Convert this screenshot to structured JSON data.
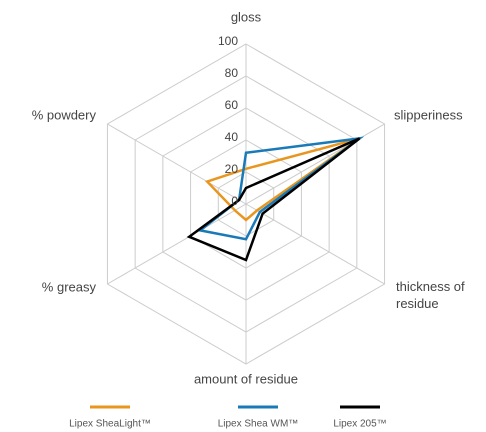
{
  "chart_data": {
    "type": "radar",
    "categories": [
      "gloss",
      "slipperiness",
      "thickness of residue",
      "amount of residue",
      "% greasy",
      "% powdery"
    ],
    "ylim": [
      0,
      100
    ],
    "yticks": [
      0,
      20,
      40,
      60,
      80,
      100
    ],
    "grid": true,
    "series": [
      {
        "name": "Lipex SheaLight™",
        "color": "#e8961e",
        "values": [
          22,
          82,
          8,
          10,
          8,
          28
        ]
      },
      {
        "name": "Lipex Shea WM™",
        "color": "#1a7ab8",
        "values": [
          32,
          82,
          10,
          22,
          33,
          5
        ]
      },
      {
        "name": "Lipex 205™",
        "color": "#000000",
        "values": [
          10,
          82,
          12,
          35,
          41,
          5
        ]
      }
    ]
  }
}
